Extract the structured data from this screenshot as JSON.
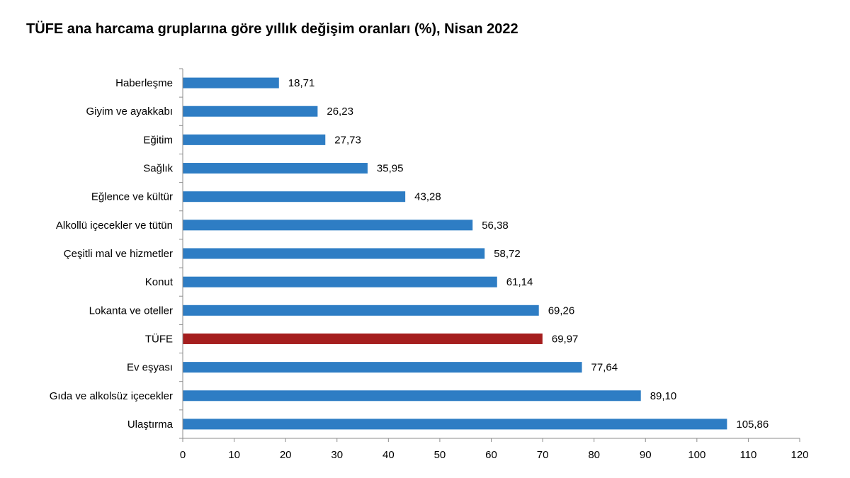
{
  "chart_data": {
    "type": "bar",
    "orientation": "horizontal",
    "title": "TÜFE ana harcama gruplarına göre yıllık değişim oranları (%), Nisan 2022",
    "categories": [
      "Haberleşme",
      "Giyim ve ayakkabı",
      "Eğitim",
      "Sağlık",
      "Eğlence ve kültür",
      "Alkollü içecekler ve tütün",
      "Çeşitli mal ve hizmetler",
      "Konut",
      "Lokanta ve oteller",
      "TÜFE",
      "Ev eşyası",
      "Gıda ve alkolsüz içecekler",
      "Ulaştırma"
    ],
    "values": [
      18.71,
      26.23,
      27.73,
      35.95,
      43.28,
      56.38,
      58.72,
      61.14,
      69.26,
      69.97,
      77.64,
      89.1,
      105.86
    ],
    "value_labels": [
      "18,71",
      "26,23",
      "27,73",
      "35,95",
      "43,28",
      "56,38",
      "58,72",
      "61,14",
      "69,26",
      "69,97",
      "77,64",
      "89,10",
      "105,86"
    ],
    "xlim": [
      0,
      120
    ],
    "xticks": [
      0,
      10,
      20,
      30,
      40,
      50,
      60,
      70,
      80,
      90,
      100,
      110,
      120
    ],
    "xlabel": "",
    "ylabel": "",
    "grid": false,
    "legend": "none",
    "colors": {
      "bar": "#2E7DC4",
      "highlight": "#A51E1E",
      "axis": "#8C8C8C",
      "text": "#000000"
    },
    "highlight_category": "TÜFE"
  }
}
